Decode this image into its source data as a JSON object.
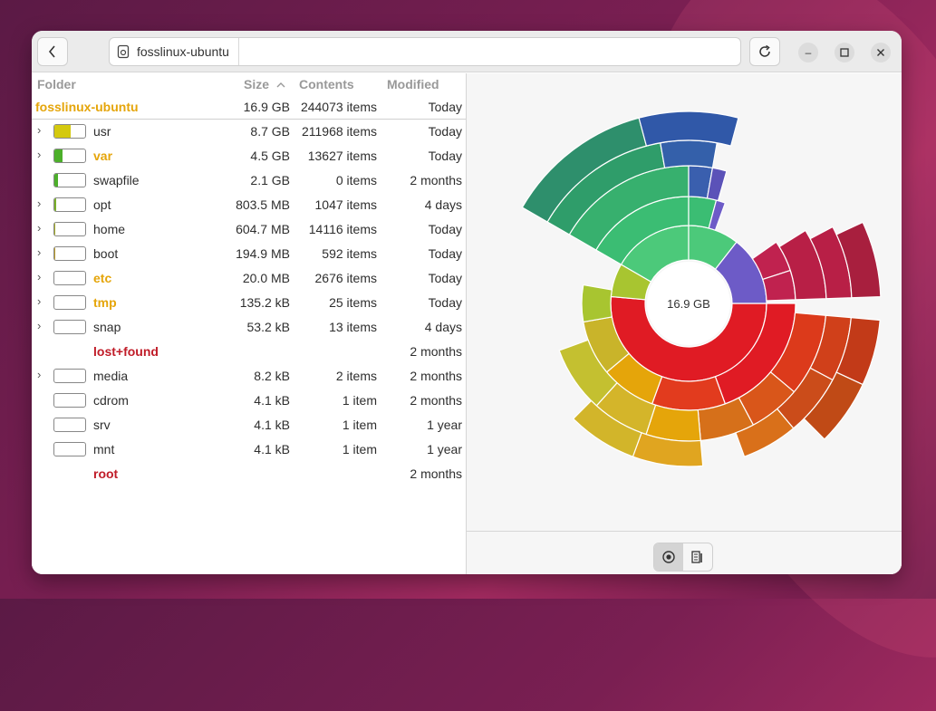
{
  "path": "fosslinux-ubuntu",
  "columns": {
    "folder": "Folder",
    "size": "Size",
    "contents": "Contents",
    "modified": "Modified"
  },
  "sort_icon": "chevron-up-icon",
  "root": {
    "name": "fosslinux-ubuntu",
    "size": "16.9 GB",
    "contents": "244073 items",
    "modified": "Today"
  },
  "rows": [
    {
      "name": "usr",
      "size": "8.7 GB",
      "contents": "211968 items",
      "modified": "Today",
      "expandable": true,
      "has_bar": true,
      "fill": 0.52,
      "fill_color": "#d4c90e",
      "color": "#2e2e2e",
      "bold": false
    },
    {
      "name": "var",
      "size": "4.5 GB",
      "contents": "13627 items",
      "modified": "Today",
      "expandable": true,
      "has_bar": true,
      "fill": 0.27,
      "fill_color": "#4caf2a",
      "color": "#e5a50a",
      "bold": true
    },
    {
      "name": "swapfile",
      "size": "2.1 GB",
      "contents": "0 items",
      "modified": "2 months",
      "expandable": false,
      "has_bar": true,
      "fill": 0.12,
      "fill_color": "#4caf2a",
      "color": "#2e2e2e",
      "bold": false
    },
    {
      "name": "opt",
      "size": "803.5 MB",
      "contents": "1047 items",
      "modified": "4 days",
      "expandable": true,
      "has_bar": true,
      "fill": 0.05,
      "fill_color": "#7ab02a",
      "color": "#2e2e2e",
      "bold": false
    },
    {
      "name": "home",
      "size": "604.7 MB",
      "contents": "14116 items",
      "modified": "Today",
      "expandable": true,
      "has_bar": true,
      "fill": 0.04,
      "fill_color": "#a8b02a",
      "color": "#2e2e2e",
      "bold": false
    },
    {
      "name": "boot",
      "size": "194.9 MB",
      "contents": "592 items",
      "modified": "Today",
      "expandable": true,
      "has_bar": true,
      "fill": 0.01,
      "fill_color": "#c0a02a",
      "color": "#2e2e2e",
      "bold": false
    },
    {
      "name": "etc",
      "size": "20.0 MB",
      "contents": "2676 items",
      "modified": "Today",
      "expandable": true,
      "has_bar": true,
      "fill": 0.0,
      "fill_color": "#c0a02a",
      "color": "#e5a50a",
      "bold": true
    },
    {
      "name": "tmp",
      "size": "135.2 kB",
      "contents": "25 items",
      "modified": "Today",
      "expandable": true,
      "has_bar": true,
      "fill": 0.0,
      "fill_color": "#c0a02a",
      "color": "#e5a50a",
      "bold": true
    },
    {
      "name": "snap",
      "size": "53.2 kB",
      "contents": "13 items",
      "modified": "4 days",
      "expandable": true,
      "has_bar": true,
      "fill": 0.0,
      "fill_color": "#c0a02a",
      "color": "#2e2e2e",
      "bold": false
    },
    {
      "name": "lost+found",
      "size": "",
      "contents": "",
      "modified": "2 months",
      "expandable": false,
      "has_bar": false,
      "fill": 0,
      "fill_color": "",
      "color": "#c01c28",
      "bold": true
    },
    {
      "name": "media",
      "size": "8.2 kB",
      "contents": "2 items",
      "modified": "2 months",
      "expandable": true,
      "has_bar": true,
      "fill": 0.0,
      "fill_color": "",
      "color": "#2e2e2e",
      "bold": false
    },
    {
      "name": "cdrom",
      "size": "4.1 kB",
      "contents": "1 item",
      "modified": "2 months",
      "expandable": false,
      "has_bar": true,
      "fill": 0.0,
      "fill_color": "",
      "color": "#2e2e2e",
      "bold": false
    },
    {
      "name": "srv",
      "size": "4.1 kB",
      "contents": "1 item",
      "modified": "1 year",
      "expandable": false,
      "has_bar": true,
      "fill": 0.0,
      "fill_color": "",
      "color": "#2e2e2e",
      "bold": false
    },
    {
      "name": "mnt",
      "size": "4.1 kB",
      "contents": "1 item",
      "modified": "1 year",
      "expandable": false,
      "has_bar": true,
      "fill": 0.0,
      "fill_color": "",
      "color": "#2e2e2e",
      "bold": false
    },
    {
      "name": "root",
      "size": "",
      "contents": "",
      "modified": "2 months",
      "expandable": false,
      "has_bar": false,
      "fill": 0,
      "fill_color": "",
      "color": "#c01c28",
      "bold": true
    }
  ],
  "chart": {
    "center_label": "16.9 GB"
  },
  "view_toggle": {
    "rings_icon": "rings-chart-icon",
    "treemap_icon": "treemap-chart-icon"
  },
  "icons": {
    "back": "back-icon",
    "disk": "disk-icon",
    "refresh": "refresh-icon",
    "minimize": "minimize-icon",
    "maximize": "maximize-icon",
    "close": "close-icon"
  }
}
